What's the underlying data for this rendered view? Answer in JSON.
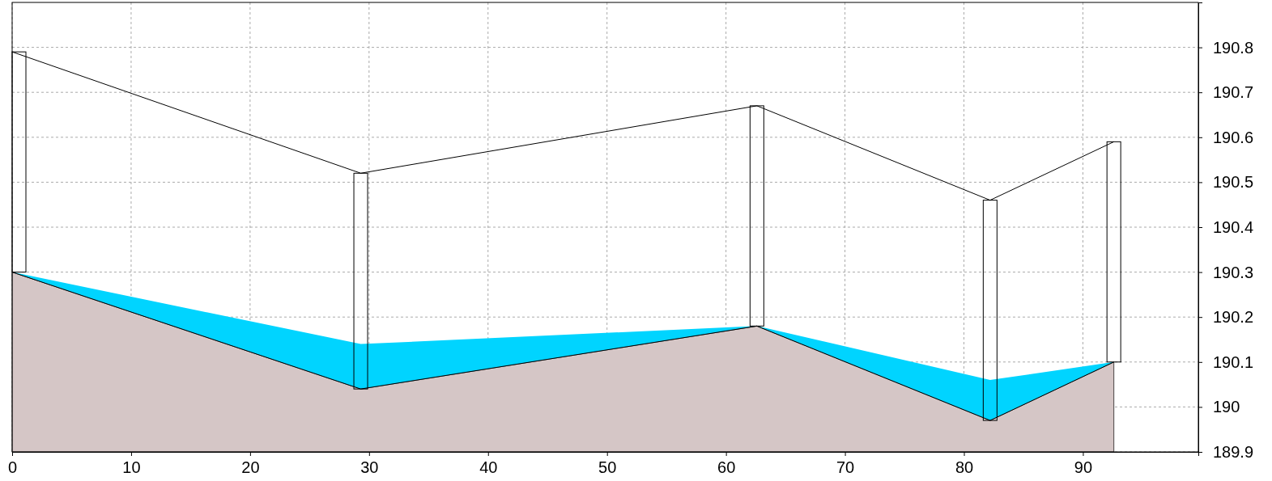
{
  "chart_data": {
    "type": "area",
    "xlim": [
      0,
      99.7
    ],
    "ylim": [
      189.9,
      190.9
    ],
    "xticks": [
      0,
      10,
      20,
      30,
      40,
      50,
      60,
      70,
      80,
      90
    ],
    "yticks": [
      189.9,
      190,
      190.1,
      190.2,
      190.3,
      190.4,
      190.5,
      190.6,
      190.7,
      190.8
    ],
    "grid": true,
    "series": [
      {
        "color": "#d5c6c6",
        "x": [
          0,
          29.3,
          62.6,
          82.2,
          92.6
        ],
        "values": [
          190.3,
          190.04,
          190.18,
          189.97,
          190.1
        ]
      },
      {
        "type": "area",
        "color": "#00d4ff",
        "x": [
          0,
          29.3,
          62.6,
          82.2,
          92.6
        ],
        "values": [
          190.3,
          190.14,
          190.18,
          190.06,
          190.1
        ]
      },
      {
        "type": "line",
        "color": "#000000",
        "x": [
          0,
          29.3,
          62.6,
          82.2,
          92.6
        ],
        "values": [
          190.79,
          190.52,
          190.67,
          190.46,
          190.59
        ]
      },
      {
        "type": "bar",
        "color": "#000000",
        "x": [
          0,
          29.3,
          62.6,
          82.2,
          92.6
        ],
        "base": [
          190.3,
          190.04,
          190.18,
          189.97,
          190.1
        ],
        "values": [
          0.49,
          0.48,
          0.49,
          0.49,
          0.49
        ]
      }
    ]
  }
}
